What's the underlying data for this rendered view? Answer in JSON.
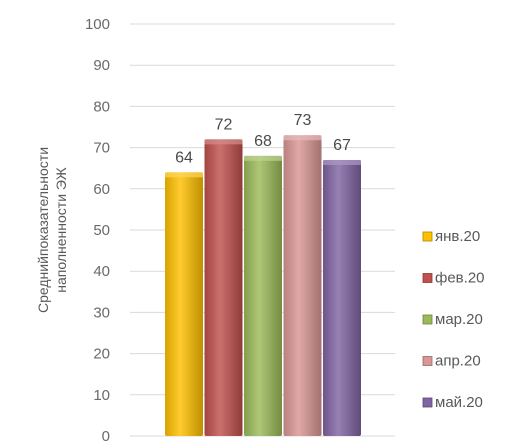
{
  "chart_data": {
    "type": "bar",
    "ylabel": "Средний показатель наполненности ЭЖ",
    "ylabel_lines": [
      "Среднийпоказательности",
      "наполненности ЭЖ"
    ],
    "ylim": [
      0,
      100
    ],
    "yticks": [
      0,
      10,
      20,
      30,
      40,
      50,
      60,
      70,
      80,
      90,
      100
    ],
    "grid": true,
    "legend_position": "right",
    "series": [
      {
        "name": "янв.20",
        "value": 64,
        "color": "#ffc000"
      },
      {
        "name": "фев.20",
        "value": 72,
        "color": "#c0504d"
      },
      {
        "name": "мар.20",
        "value": 68,
        "color": "#9bbb59"
      },
      {
        "name": "апр.20",
        "value": 73,
        "color": "#d99694"
      },
      {
        "name": "май.20",
        "value": 67,
        "color": "#8064a2"
      }
    ]
  }
}
